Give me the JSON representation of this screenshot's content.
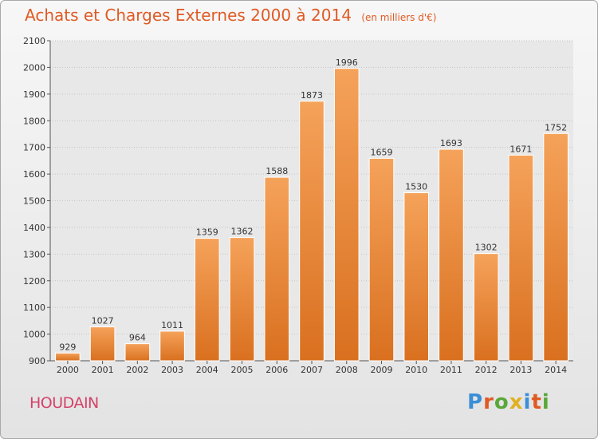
{
  "title": "Achats et Charges Externes 2000 à 2014",
  "subtitle": "(en milliers d'€)",
  "place": "HOUDAIN",
  "logo": "Proxiti",
  "colors": {
    "bar_top": "#f5a25a",
    "bar_bottom": "#d9701f",
    "title": "#e05a24",
    "place": "#d4426a"
  },
  "chart_data": {
    "type": "bar",
    "title": "Achats et Charges Externes 2000 à 2014",
    "subtitle": "(en milliers d'€)",
    "categories": [
      "2000",
      "2001",
      "2002",
      "2003",
      "2004",
      "2005",
      "2006",
      "2007",
      "2008",
      "2009",
      "2010",
      "2011",
      "2012",
      "2013",
      "2014"
    ],
    "values": [
      929,
      1027,
      964,
      1011,
      1359,
      1362,
      1588,
      1873,
      1996,
      1659,
      1530,
      1693,
      1302,
      1671,
      1752
    ],
    "ylim": [
      900,
      2100
    ],
    "yticks": [
      900,
      1000,
      1100,
      1200,
      1300,
      1400,
      1500,
      1600,
      1700,
      1800,
      1900,
      2000,
      2100
    ],
    "grid": true,
    "data_labels": true
  }
}
